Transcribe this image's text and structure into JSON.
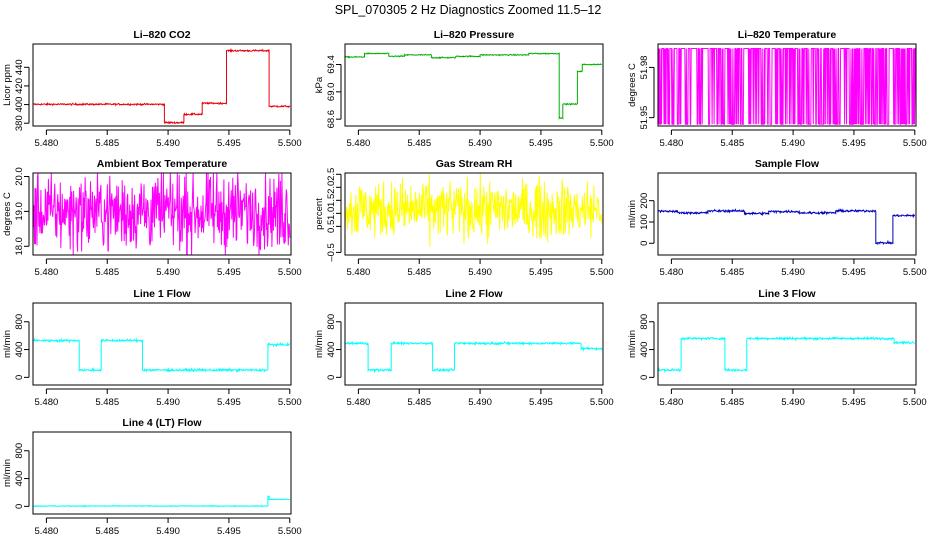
{
  "title": "SPL_070305  2 Hz Diagnostics Zoomed 11.5–12",
  "chart_data": [
    {
      "type": "line",
      "title": "Li–820 CO2",
      "ylabel": "Licor ppm",
      "color": "#e8000b",
      "xlim": [
        5.4789,
        5.5001
      ],
      "ylim": [
        377,
        465
      ],
      "ytick_labels": [
        "380",
        "400",
        "420",
        "440"
      ],
      "yticks": [
        380,
        400,
        420,
        440
      ],
      "segments": [
        [
          5.4789,
          5.4897,
          400.3
        ],
        [
          5.4897,
          5.4913,
          380.6
        ],
        [
          5.4913,
          5.4928,
          389.6
        ],
        [
          5.4928,
          5.4948,
          401.4
        ],
        [
          5.4948,
          5.4983,
          457.8
        ],
        [
          5.4983,
          5.5,
          398.1
        ]
      ],
      "noise": 0.45
    },
    {
      "type": "line",
      "title": "Li–820 Pressure",
      "ylabel": "kPa",
      "color": "#00b000",
      "xlim": [
        5.4789,
        5.5001
      ],
      "ylim": [
        68.5,
        69.7
      ],
      "ytick_labels": [
        "68.6",
        "69.0",
        "69.4"
      ],
      "yticks": [
        68.6,
        69.0,
        69.4
      ],
      "segments": [
        [
          5.4789,
          5.4805,
          69.51
        ],
        [
          5.4805,
          5.4825,
          69.56
        ],
        [
          5.4825,
          5.4838,
          69.52
        ],
        [
          5.4838,
          5.486,
          69.54
        ],
        [
          5.486,
          5.488,
          69.5
        ],
        [
          5.488,
          5.49,
          69.52
        ],
        [
          5.49,
          5.494,
          69.54
        ],
        [
          5.494,
          5.4965,
          69.56
        ],
        [
          5.4965,
          5.4968,
          68.62
        ],
        [
          5.4968,
          5.498,
          68.82
        ],
        [
          5.498,
          5.4984,
          69.3
        ],
        [
          5.4984,
          5.5,
          69.4
        ]
      ],
      "noise": 0.004
    },
    {
      "type": "line",
      "title": "Li–820 Temperature",
      "ylabel": "degrees C",
      "color": "#ff00ff",
      "xlim": [
        5.4789,
        5.5001
      ],
      "ylim": [
        51.945,
        51.994
      ],
      "ytick_labels": [
        "51.95",
        "51.98"
      ],
      "yticks": [
        51.95,
        51.98
      ],
      "levels": [
        51.9461,
        51.9913
      ],
      "noise": 0
    },
    {
      "type": "line",
      "title": "Ambient Box Temperature",
      "ylabel": "degrees C",
      "color": "#ff00ff",
      "xlim": [
        5.4789,
        5.5001
      ],
      "ylim": [
        17.75,
        20.1
      ],
      "ytick_labels": [
        "18.0",
        "19.0",
        "20.0"
      ],
      "yticks": [
        18.0,
        19.0,
        20.0
      ],
      "segments": [
        [
          5.4789,
          5.5,
          19.0
        ]
      ],
      "noise": 0.55
    },
    {
      "type": "line",
      "title": "Gas Stream RH",
      "ylabel": "percent",
      "color": "#ffff00",
      "xlim": [
        5.4789,
        5.5001
      ],
      "ylim": [
        -0.6,
        2.55
      ],
      "ytick_labels": [
        "–0.5",
        "0.5",
        "1.0",
        "1.5",
        "2.0",
        "2.5"
      ],
      "yticks": [
        -0.5,
        0.5,
        1.0,
        1.5,
        2.0,
        2.5
      ],
      "segments": [
        [
          5.4789,
          5.5,
          1.15
        ]
      ],
      "noise": 0.55
    },
    {
      "type": "line",
      "title": "Sample Flow",
      "ylabel": "ml/min",
      "color": "#0000c0",
      "xlim": [
        5.4789,
        5.5001
      ],
      "ylim": [
        -55,
        330
      ],
      "ytick_labels": [
        "0",
        "100",
        "200"
      ],
      "yticks": [
        0,
        100,
        200
      ],
      "segments": [
        [
          5.4789,
          5.4805,
          150
        ],
        [
          5.4805,
          5.483,
          143
        ],
        [
          5.483,
          5.486,
          152
        ],
        [
          5.486,
          5.488,
          140
        ],
        [
          5.488,
          5.4905,
          149
        ],
        [
          5.4905,
          5.4935,
          143
        ],
        [
          5.4935,
          5.4968,
          152
        ],
        [
          5.4968,
          5.4982,
          2
        ],
        [
          5.4982,
          5.5,
          130
        ]
      ],
      "noise": 2.5
    },
    {
      "type": "line",
      "title": "Line 1 Flow",
      "ylabel": "ml/min",
      "color": "#00ffff",
      "xlim": [
        5.4789,
        5.5001
      ],
      "ylim": [
        -110,
        1070
      ],
      "ytick_labels": [
        "0",
        "400",
        "800"
      ],
      "yticks": [
        0,
        400,
        800
      ],
      "segments": [
        [
          5.4789,
          5.4827,
          530
        ],
        [
          5.4827,
          5.4845,
          105
        ],
        [
          5.4845,
          5.4879,
          530
        ],
        [
          5.4879,
          5.4982,
          105
        ],
        [
          5.4982,
          5.5,
          470
        ]
      ],
      "noise": 8
    },
    {
      "type": "line",
      "title": "Line 2 Flow",
      "ylabel": "ml/min",
      "color": "#00ffff",
      "xlim": [
        5.4789,
        5.5001
      ],
      "ylim": [
        -110,
        1070
      ],
      "ytick_labels": [
        "0",
        "400",
        "800"
      ],
      "yticks": [
        0,
        400,
        800
      ],
      "segments": [
        [
          5.4789,
          5.4808,
          490
        ],
        [
          5.4808,
          5.4827,
          105
        ],
        [
          5.4827,
          5.4861,
          490
        ],
        [
          5.4861,
          5.4879,
          105
        ],
        [
          5.4879,
          5.4983,
          490
        ],
        [
          5.4983,
          5.5,
          415
        ]
      ],
      "noise": 8
    },
    {
      "type": "line",
      "title": "Line 3 Flow",
      "ylabel": "ml/min",
      "color": "#00ffff",
      "xlim": [
        5.4789,
        5.5001
      ],
      "ylim": [
        -110,
        1070
      ],
      "ytick_labels": [
        "0",
        "400",
        "800"
      ],
      "yticks": [
        0,
        400,
        800
      ],
      "segments": [
        [
          5.4789,
          5.4808,
          105
        ],
        [
          5.4808,
          5.4844,
          560
        ],
        [
          5.4844,
          5.4862,
          105
        ],
        [
          5.4862,
          5.4983,
          560
        ],
        [
          5.4983,
          5.5,
          500
        ]
      ],
      "noise": 8
    },
    {
      "type": "line",
      "title": "Line 4 (LT) Flow",
      "ylabel": "ml/min",
      "color": "#00ffff",
      "xlim": [
        5.4789,
        5.5001
      ],
      "ylim": [
        -110,
        1070
      ],
      "ytick_labels": [
        "0",
        "400",
        "800"
      ],
      "yticks": [
        0,
        400,
        800
      ],
      "segments": [
        [
          5.4789,
          5.4982,
          5
        ],
        [
          5.4982,
          5.4983,
          150
        ],
        [
          5.4983,
          5.5,
          100
        ]
      ],
      "noise": 3
    }
  ],
  "xticks": [
    5.48,
    5.485,
    5.49,
    5.495,
    5.5
  ],
  "xtick_labels": [
    "5.480",
    "5.485",
    "5.490",
    "5.495",
    "5.500"
  ]
}
